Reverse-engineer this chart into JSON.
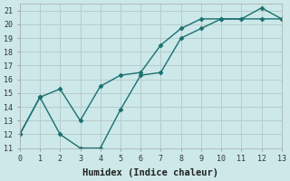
{
  "title": "",
  "xlabel": "Humidex (Indice chaleur)",
  "ylabel": "",
  "bg_color": "#cce8e8",
  "grid_color": "#c8dada",
  "line_color": "#1a7070",
  "xlim": [
    0,
    13
  ],
  "ylim": [
    11,
    21.5
  ],
  "xticks": [
    0,
    1,
    2,
    3,
    4,
    5,
    6,
    7,
    8,
    9,
    10,
    11,
    12,
    13
  ],
  "yticks": [
    11,
    12,
    13,
    14,
    15,
    16,
    17,
    18,
    19,
    20,
    21
  ],
  "series1_x": [
    0,
    1,
    2,
    3,
    4,
    5,
    6,
    7,
    8,
    9,
    10,
    11,
    12,
    13
  ],
  "series1_y": [
    12,
    14.7,
    12.0,
    11.0,
    11.0,
    13.8,
    16.3,
    16.5,
    19.0,
    19.7,
    20.4,
    20.4,
    21.2,
    20.4
  ],
  "series2_x": [
    0,
    1,
    2,
    3,
    4,
    5,
    6,
    7,
    8,
    9,
    10,
    12,
    13
  ],
  "series2_y": [
    12,
    14.7,
    15.3,
    13.0,
    15.5,
    16.3,
    16.5,
    18.5,
    19.7,
    20.4,
    20.4,
    20.4,
    20.4
  ],
  "marker": "D",
  "markersize": 2.5,
  "linewidth": 1.0,
  "tick_fontsize": 6,
  "label_fontsize": 7.5
}
